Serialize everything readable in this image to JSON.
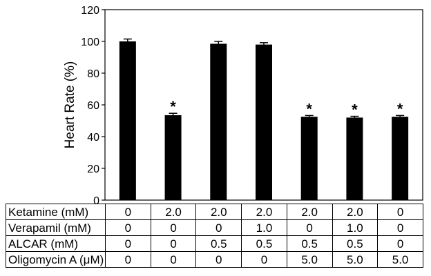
{
  "chart_data": {
    "type": "bar",
    "ylabel": "Heart Rate (%)",
    "ylim": [
      0,
      120
    ],
    "yticks": [
      0,
      20,
      40,
      60,
      80,
      100,
      120
    ],
    "grid": false,
    "bar_color": "#000000",
    "values": [
      100,
      53.5,
      98.5,
      98,
      52.5,
      52,
      52.5
    ],
    "errors": [
      1.5,
      1.2,
      1.5,
      1.2,
      0.8,
      0.8,
      0.8
    ],
    "significance": [
      "",
      "*",
      "",
      "",
      "*",
      "*",
      "*"
    ],
    "conditions": [
      {
        "label": "Ketamine (mM)",
        "values": [
          "0",
          "2.0",
          "2.0",
          "2.0",
          "2.0",
          "2.0",
          "0"
        ]
      },
      {
        "label": "Verapamil (mM)",
        "values": [
          "0",
          "0",
          "0",
          "1.0",
          "0",
          "1.0",
          "0"
        ]
      },
      {
        "label": "ALCAR (mM)",
        "values": [
          "0",
          "0",
          "0.5",
          "0.5",
          "0.5",
          "0.5",
          "0"
        ]
      },
      {
        "label": "Oligomycin A (μM)",
        "values": [
          "0",
          "0",
          "0",
          "0",
          "5.0",
          "5.0",
          "5.0"
        ]
      }
    ]
  }
}
